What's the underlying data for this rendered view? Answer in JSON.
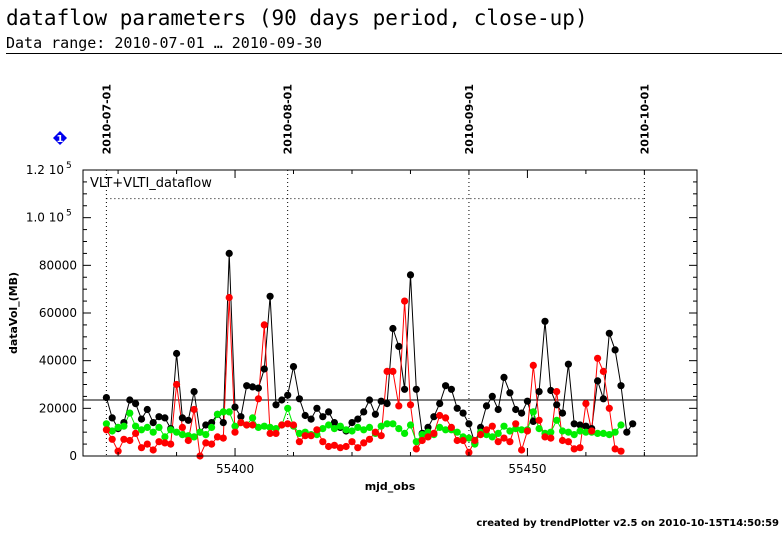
{
  "page": {
    "title": "dataflow parameters (90 days period, close-up)",
    "subtitle": "Data range: 2010-07-01 … 2010-09-30",
    "footer": "created by trendPlotter v2.5 on 2010-10-15T14:50:59",
    "marker_badge": "1"
  },
  "colors": {
    "series_black": "#000000",
    "series_red": "#ff0000",
    "series_green": "#00ee00",
    "badge": "#0000ee"
  },
  "chart_data": {
    "type": "scatter",
    "panel_label": "VLT+VLTI_dataflow",
    "xlabel": "mjd_obs",
    "ylabel": "dataVol_(MB)",
    "xlim": [
      55374,
      55479
    ],
    "ylim": [
      0,
      120000
    ],
    "x_ticks": [
      {
        "value": 55400,
        "label": "55400"
      },
      {
        "value": 55450,
        "label": "55450"
      }
    ],
    "y_ticks": [
      {
        "value": 0,
        "label": "0"
      },
      {
        "value": 20000,
        "label": "20000"
      },
      {
        "value": 40000,
        "label": "40000"
      },
      {
        "value": 60000,
        "label": "60000"
      },
      {
        "value": 80000,
        "label": "80000"
      },
      {
        "value": 100000,
        "label": "1.0 10",
        "exp": "5"
      },
      {
        "value": 120000,
        "label": "1.2 10",
        "exp": "5"
      }
    ],
    "date_markers": [
      {
        "x": 55378,
        "label": "2010-07-01"
      },
      {
        "x": 55409,
        "label": "2010-08-01"
      },
      {
        "x": 55440,
        "label": "2010-09-01"
      },
      {
        "x": 55470,
        "label": "2010-10-01"
      }
    ],
    "reference_lines": {
      "horizontal_solid": 23500,
      "horizontal_dotted": 108000
    },
    "series": [
      {
        "color_key": "series_black",
        "values": [
          [
            55378,
            24500
          ],
          [
            55379,
            16000
          ],
          [
            55380,
            11500
          ],
          [
            55381,
            14000
          ],
          [
            55382,
            23500
          ],
          [
            55383,
            22000
          ],
          [
            55384,
            15500
          ],
          [
            55385,
            19500
          ],
          [
            55386,
            14000
          ],
          [
            55387,
            16500
          ],
          [
            55388,
            16000
          ],
          [
            55389,
            11500
          ],
          [
            55390,
            43000
          ],
          [
            55391,
            16000
          ],
          [
            55392,
            15000
          ],
          [
            55393,
            27000
          ],
          [
            55394,
            10000
          ],
          [
            55395,
            13000
          ],
          [
            55396,
            14000
          ],
          [
            55397,
            17500
          ],
          [
            55398,
            14000
          ],
          [
            55399,
            85000
          ],
          [
            55400,
            20500
          ],
          [
            55401,
            16500
          ],
          [
            55402,
            29500
          ],
          [
            55403,
            29000
          ],
          [
            55404,
            28500
          ],
          [
            55405,
            36500
          ],
          [
            55406,
            67000
          ],
          [
            55407,
            21500
          ],
          [
            55408,
            23500
          ],
          [
            55409,
            25500
          ],
          [
            55410,
            37500
          ],
          [
            55411,
            24000
          ],
          [
            55412,
            17000
          ],
          [
            55413,
            15500
          ],
          [
            55414,
            20000
          ],
          [
            55415,
            16500
          ],
          [
            55416,
            18500
          ],
          [
            55417,
            14000
          ],
          [
            55418,
            12000
          ],
          [
            55419,
            10500
          ],
          [
            55420,
            14000
          ],
          [
            55421,
            15500
          ],
          [
            55422,
            18500
          ],
          [
            55423,
            23500
          ],
          [
            55424,
            17500
          ],
          [
            55425,
            23000
          ],
          [
            55426,
            22000
          ],
          [
            55427,
            53500
          ],
          [
            55428,
            46000
          ],
          [
            55429,
            28000
          ],
          [
            55430,
            76000
          ],
          [
            55431,
            28000
          ],
          [
            55432,
            9500
          ],
          [
            55433,
            12000
          ],
          [
            55434,
            16500
          ],
          [
            55435,
            22000
          ],
          [
            55436,
            29500
          ],
          [
            55437,
            28000
          ],
          [
            55438,
            20000
          ],
          [
            55439,
            18000
          ],
          [
            55440,
            13500
          ],
          [
            55441,
            5500
          ],
          [
            55442,
            12000
          ],
          [
            55443,
            21000
          ],
          [
            55444,
            25000
          ],
          [
            55445,
            19500
          ],
          [
            55446,
            33000
          ],
          [
            55447,
            26500
          ],
          [
            55448,
            19500
          ],
          [
            55449,
            18000
          ],
          [
            55450,
            23000
          ],
          [
            55451,
            14500
          ],
          [
            55452,
            27000
          ],
          [
            55453,
            56500
          ],
          [
            55454,
            27500
          ],
          [
            55455,
            21500
          ],
          [
            55456,
            18000
          ],
          [
            55457,
            38500
          ],
          [
            55458,
            13500
          ],
          [
            55459,
            13000
          ],
          [
            55460,
            12500
          ],
          [
            55461,
            11500
          ],
          [
            55462,
            31500
          ],
          [
            55463,
            24000
          ],
          [
            55464,
            51500
          ],
          [
            55465,
            44500
          ],
          [
            55466,
            29500
          ],
          [
            55467,
            10000
          ],
          [
            55468,
            13500
          ]
        ]
      },
      {
        "color_key": "series_red",
        "values": [
          [
            55378,
            11000
          ],
          [
            55379,
            7000
          ],
          [
            55380,
            2000
          ],
          [
            55381,
            7000
          ],
          [
            55382,
            6500
          ],
          [
            55383,
            9500
          ],
          [
            55384,
            3500
          ],
          [
            55385,
            5000
          ],
          [
            55386,
            2500
          ],
          [
            55387,
            6000
          ],
          [
            55388,
            5500
          ],
          [
            55389,
            5000
          ],
          [
            55390,
            30000
          ],
          [
            55391,
            12000
          ],
          [
            55392,
            6500
          ],
          [
            55393,
            19500
          ],
          [
            55394,
            0
          ],
          [
            55395,
            5500
          ],
          [
            55396,
            5000
          ],
          [
            55397,
            8000
          ],
          [
            55398,
            7500
          ],
          [
            55399,
            66500
          ],
          [
            55400,
            10000
          ],
          [
            55401,
            14000
          ],
          [
            55402,
            13000
          ],
          [
            55403,
            13000
          ],
          [
            55404,
            24000
          ],
          [
            55405,
            55000
          ],
          [
            55406,
            9500
          ],
          [
            55407,
            9500
          ],
          [
            55408,
            13000
          ],
          [
            55409,
            13500
          ],
          [
            55410,
            13000
          ],
          [
            55411,
            6000
          ],
          [
            55412,
            8500
          ],
          [
            55413,
            8500
          ],
          [
            55414,
            11000
          ],
          [
            55415,
            6000
          ],
          [
            55416,
            4000
          ],
          [
            55417,
            4500
          ],
          [
            55418,
            3500
          ],
          [
            55419,
            4000
          ],
          [
            55420,
            6000
          ],
          [
            55421,
            3500
          ],
          [
            55422,
            5500
          ],
          [
            55423,
            7000
          ],
          [
            55424,
            10000
          ],
          [
            55425,
            8500
          ],
          [
            55426,
            35500
          ],
          [
            55427,
            35500
          ],
          [
            55428,
            21000
          ],
          [
            55429,
            65000
          ],
          [
            55430,
            21500
          ],
          [
            55431,
            3000
          ],
          [
            55432,
            6500
          ],
          [
            55433,
            8000
          ],
          [
            55434,
            9500
          ],
          [
            55435,
            17000
          ],
          [
            55436,
            16000
          ],
          [
            55437,
            12000
          ],
          [
            55438,
            6500
          ],
          [
            55439,
            6500
          ],
          [
            55440,
            1500
          ],
          [
            55441,
            6500
          ],
          [
            55442,
            9000
          ],
          [
            55443,
            11000
          ],
          [
            55444,
            12500
          ],
          [
            55445,
            6000
          ],
          [
            55446,
            7500
          ],
          [
            55447,
            6000
          ],
          [
            55448,
            13500
          ],
          [
            55449,
            2500
          ],
          [
            55450,
            10500
          ],
          [
            55451,
            38000
          ],
          [
            55452,
            15000
          ],
          [
            55453,
            8000
          ],
          [
            55454,
            7500
          ],
          [
            55455,
            27000
          ],
          [
            55456,
            6500
          ],
          [
            55457,
            6000
          ],
          [
            55458,
            3000
          ],
          [
            55459,
            3500
          ],
          [
            55460,
            22000
          ],
          [
            55461,
            10500
          ],
          [
            55462,
            41000
          ],
          [
            55463,
            35500
          ],
          [
            55464,
            20000
          ],
          [
            55465,
            3000
          ],
          [
            55466,
            2000
          ]
        ]
      },
      {
        "color_key": "series_green",
        "values": [
          [
            55378,
            13500
          ],
          [
            55379,
            10500
          ],
          [
            55380,
            12000
          ],
          [
            55381,
            12500
          ],
          [
            55382,
            18000
          ],
          [
            55383,
            12500
          ],
          [
            55384,
            11000
          ],
          [
            55385,
            12000
          ],
          [
            55386,
            10000
          ],
          [
            55387,
            12000
          ],
          [
            55388,
            8000
          ],
          [
            55389,
            11000
          ],
          [
            55390,
            10000
          ],
          [
            55391,
            9000
          ],
          [
            55392,
            8500
          ],
          [
            55393,
            8000
          ],
          [
            55394,
            10000
          ],
          [
            55395,
            9000
          ],
          [
            55396,
            12000
          ],
          [
            55397,
            17500
          ],
          [
            55398,
            18500
          ],
          [
            55399,
            18500
          ],
          [
            55400,
            12500
          ],
          [
            55401,
            14000
          ],
          [
            55402,
            13000
          ],
          [
            55403,
            16000
          ],
          [
            55404,
            12000
          ],
          [
            55405,
            12500
          ],
          [
            55406,
            12000
          ],
          [
            55407,
            11500
          ],
          [
            55408,
            13000
          ],
          [
            55409,
            20000
          ],
          [
            55410,
            12500
          ],
          [
            55411,
            9500
          ],
          [
            55412,
            10000
          ],
          [
            55413,
            9000
          ],
          [
            55414,
            9000
          ],
          [
            55415,
            11500
          ],
          [
            55416,
            13000
          ],
          [
            55417,
            11500
          ],
          [
            55418,
            12500
          ],
          [
            55419,
            11000
          ],
          [
            55420,
            10500
          ],
          [
            55421,
            12000
          ],
          [
            55422,
            11000
          ],
          [
            55423,
            12000
          ],
          [
            55424,
            9500
          ],
          [
            55425,
            12500
          ],
          [
            55426,
            13500
          ],
          [
            55427,
            13500
          ],
          [
            55428,
            11500
          ],
          [
            55429,
            9500
          ],
          [
            55430,
            13000
          ],
          [
            55431,
            6000
          ],
          [
            55432,
            9000
          ],
          [
            55433,
            10000
          ],
          [
            55434,
            9000
          ],
          [
            55435,
            12000
          ],
          [
            55436,
            11000
          ],
          [
            55437,
            11000
          ],
          [
            55438,
            10000
          ],
          [
            55439,
            8000
          ],
          [
            55440,
            7500
          ],
          [
            55441,
            5000
          ],
          [
            55442,
            10000
          ],
          [
            55443,
            9000
          ],
          [
            55444,
            8000
          ],
          [
            55445,
            9500
          ],
          [
            55446,
            12500
          ],
          [
            55447,
            10500
          ],
          [
            55448,
            11500
          ],
          [
            55449,
            11000
          ],
          [
            55450,
            11000
          ],
          [
            55451,
            18500
          ],
          [
            55452,
            11500
          ],
          [
            55453,
            9500
          ],
          [
            55454,
            10000
          ],
          [
            55455,
            15000
          ],
          [
            55456,
            10500
          ],
          [
            55457,
            10000
          ],
          [
            55458,
            9000
          ],
          [
            55459,
            10500
          ],
          [
            55460,
            10000
          ],
          [
            55461,
            10000
          ],
          [
            55462,
            9500
          ],
          [
            55463,
            9500
          ],
          [
            55464,
            9000
          ],
          [
            55465,
            10000
          ],
          [
            55466,
            13000
          ]
        ]
      }
    ]
  }
}
